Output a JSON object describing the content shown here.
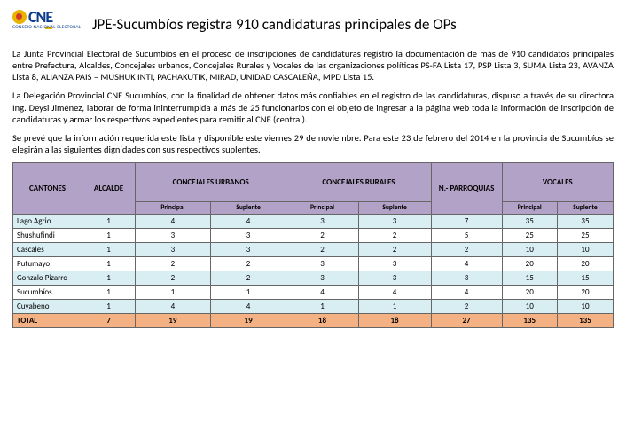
{
  "logo": {
    "text": "CNE",
    "sub": "CONSEJO NACIONAL ELECTORAL"
  },
  "title": "JPE-Sucumbíos registra 910 candidaturas principales de OPs",
  "paragraphs": [
    "La Junta Provincial Electoral de Sucumbíos en el proceso de inscripciones de candidaturas registró la documentación de más de 910 candidatos principales entre Prefectura, Alcaldes, Concejales urbanos, Concejales Rurales y Vocales  de las organizaciones políticas PS-FA Lista 17, PSP Lista 3, SUMA Lista 23, AVANZA Lista 8, ALIANZA PAIS – MUSHUK INTI, PACHAKUTIK, MIRAD, UNIDAD CASCALEÑA, MPD Lista 15.",
    "La Delegación Provincial CNE Sucumbíos,  con la finalidad de obtener datos más confiables en el registro de las candidaturas, dispuso a través de su directora Ing. Deysi Jiménez, laborar de forma ininterrumpida a más de 25 funcionarios con el objeto de ingresar a la página web toda la información de inscripción de candidaturas y armar los respectivos expedientes para remitir al CNE (central).",
    "Se prevé que la información requerida este lista y disponible este viernes 29 de noviembre. Para este 23 de febrero del 2014 en la provincia de Sucumbíos  se elegirán a las siguientes dignidades con sus respectivos suplentes."
  ],
  "table": {
    "headers": {
      "cantones": "CANTONES",
      "alcalde": "ALCALDE",
      "conc_urb": "CONCEJALES URBANOS",
      "conc_rur": "CONCEJALES RURALES",
      "parroquias": "N.- PARROQUIAS",
      "vocales": "VOCALES",
      "principal": "Principal",
      "suplente": "Suplente"
    },
    "rows": [
      {
        "canton": "Lago Agrio",
        "alcalde": 1,
        "cu_p": 4,
        "cu_s": 4,
        "cr_p": 3,
        "cr_s": 3,
        "parr": 7,
        "vo_p": 35,
        "vo_s": 35
      },
      {
        "canton": "Shushufindi",
        "alcalde": 1,
        "cu_p": 3,
        "cu_s": 3,
        "cr_p": 2,
        "cr_s": 2,
        "parr": 5,
        "vo_p": 25,
        "vo_s": 25
      },
      {
        "canton": "Cascales",
        "alcalde": 1,
        "cu_p": 3,
        "cu_s": 3,
        "cr_p": 2,
        "cr_s": 2,
        "parr": 2,
        "vo_p": 10,
        "vo_s": 10
      },
      {
        "canton": "Putumayo",
        "alcalde": 1,
        "cu_p": 2,
        "cu_s": 2,
        "cr_p": 3,
        "cr_s": 3,
        "parr": 4,
        "vo_p": 20,
        "vo_s": 20
      },
      {
        "canton": "Gonzalo Pizarro",
        "alcalde": 1,
        "cu_p": 2,
        "cu_s": 2,
        "cr_p": 3,
        "cr_s": 3,
        "parr": 3,
        "vo_p": 15,
        "vo_s": 15
      },
      {
        "canton": "Sucumbíos",
        "alcalde": 1,
        "cu_p": 1,
        "cu_s": 1,
        "cr_p": 4,
        "cr_s": 4,
        "parr": 4,
        "vo_p": 20,
        "vo_s": 20
      },
      {
        "canton": "Cuyabeno",
        "alcalde": 1,
        "cu_p": 4,
        "cu_s": 4,
        "cr_p": 1,
        "cr_s": 1,
        "parr": 2,
        "vo_p": 10,
        "vo_s": 10
      }
    ],
    "total": {
      "label": "TOTAL",
      "alcalde": 7,
      "cu_p": 19,
      "cu_s": 19,
      "cr_p": 18,
      "cr_s": 18,
      "parr": 27,
      "vo_p": 135,
      "vo_s": 135
    },
    "colors": {
      "header_bg": "#b3a2c7",
      "row_even_bg": "#d9eef3",
      "row_odd_bg": "#ffffff",
      "total_bg": "#f4b183",
      "border": "#666666"
    }
  }
}
